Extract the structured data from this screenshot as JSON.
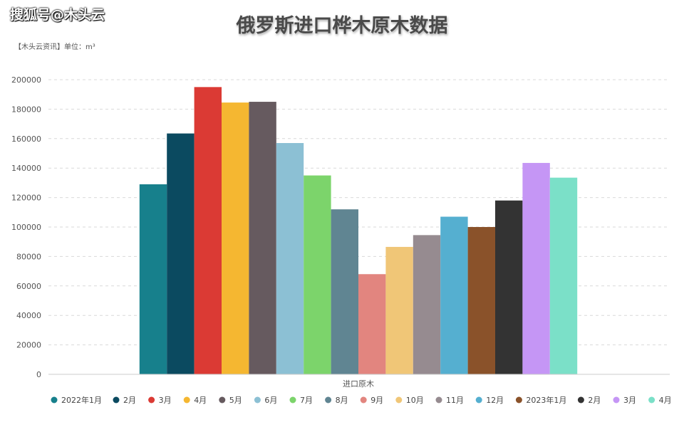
{
  "watermark": "搜狐号@木头云",
  "chart_data": {
    "type": "bar",
    "title": "俄罗斯进口桦木原木数据",
    "subtitle": "【木头云资讯】单位：m³",
    "xlabel": "进口原木",
    "ylabel": "",
    "ylim": [
      0,
      200000
    ],
    "yticks": [
      0,
      20000,
      40000,
      60000,
      80000,
      100000,
      120000,
      140000,
      160000,
      180000,
      200000
    ],
    "grid": true,
    "legend": "bottom",
    "categories": [
      "进口原木"
    ],
    "series": [
      {
        "name": "2022年1月",
        "values": [
          129000
        ],
        "color": "#17808c"
      },
      {
        "name": "2月",
        "values": [
          163500
        ],
        "color": "#0b4a60"
      },
      {
        "name": "3月",
        "values": [
          195000
        ],
        "color": "#db3a34"
      },
      {
        "name": "4月",
        "values": [
          184500
        ],
        "color": "#f5b731"
      },
      {
        "name": "5月",
        "values": [
          185000
        ],
        "color": "#665a5f"
      },
      {
        "name": "6月",
        "values": [
          157000
        ],
        "color": "#8cc0d4"
      },
      {
        "name": "7月",
        "values": [
          135000
        ],
        "color": "#7cd46b"
      },
      {
        "name": "8月",
        "values": [
          112000
        ],
        "color": "#608592"
      },
      {
        "name": "9月",
        "values": [
          68000
        ],
        "color": "#e2857f"
      },
      {
        "name": "10月",
        "values": [
          86500
        ],
        "color": "#f0c677"
      },
      {
        "name": "11月",
        "values": [
          94500
        ],
        "color": "#968b90"
      },
      {
        "name": "12月",
        "values": [
          107000
        ],
        "color": "#55afd0"
      },
      {
        "name": "2023年1月",
        "values": [
          100000
        ],
        "color": "#8a522a"
      },
      {
        "name": "2月",
        "values": [
          118000
        ],
        "color": "#333333"
      },
      {
        "name": "3月",
        "values": [
          143500
        ],
        "color": "#c596f5"
      },
      {
        "name": "4月",
        "values": [
          133500
        ],
        "color": "#7be0c8"
      }
    ]
  }
}
